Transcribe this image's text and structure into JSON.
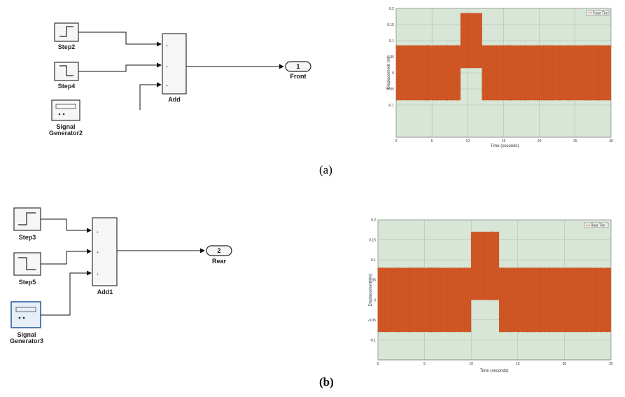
{
  "panels": [
    {
      "caption": "(a)",
      "caption_bold": false,
      "blocks": [
        {
          "name": "step-block",
          "label": "Step2",
          "icon": "step-up-icon"
        },
        {
          "name": "step-block",
          "label": "Step4",
          "icon": "step-down-icon"
        },
        {
          "name": "signal-generator-block",
          "label": "Signal Generator2",
          "icon": "signal-generator-icon"
        }
      ],
      "sum": {
        "label": "Add",
        "signs": [
          "+",
          "+",
          "+"
        ]
      },
      "outport": {
        "number": "1",
        "label": "Front"
      },
      "scope": {
        "legend": "Front Tire",
        "ylabel": "Displacement (m)",
        "xlabel": "Time (seconds)"
      }
    },
    {
      "caption": "(b)",
      "caption_bold": true,
      "blocks": [
        {
          "name": "step-block",
          "label": "Step3",
          "icon": "step-up-icon"
        },
        {
          "name": "step-block",
          "label": "Step5",
          "icon": "step-down-icon"
        },
        {
          "name": "signal-generator-block",
          "label": "Signal Generator3",
          "icon": "signal-generator-icon"
        }
      ],
      "sum": {
        "label": "Add1",
        "signs": [
          "+",
          "+",
          "+"
        ]
      },
      "outport": {
        "number": "2",
        "label": "Rear"
      },
      "scope": {
        "legend": "Rear Tire",
        "ylabel": "Displacement (m)",
        "xlabel": "Time (seconds)"
      }
    }
  ],
  "chart_data": [
    {
      "type": "area",
      "title": "",
      "xlabel": "Time (seconds)",
      "ylabel": "Displacement (m)",
      "legend": [
        "Front Tire"
      ],
      "xlim": [
        0,
        30
      ],
      "ylim": [
        -0.2,
        0.2
      ],
      "x_ticks": [
        "0",
        "5",
        "10",
        "15",
        "20",
        "25",
        "30"
      ],
      "y_ticks": [
        "0.2",
        "0.15",
        "0.1",
        "0.05",
        "0",
        "-0.05",
        "-0.1"
      ],
      "segments": [
        {
          "x_range": [
            0,
            9
          ],
          "band": [
            -0.085,
            0.085
          ]
        },
        {
          "x_range": [
            9,
            12
          ],
          "band": [
            0.015,
            0.185
          ]
        },
        {
          "x_range": [
            12,
            30
          ],
          "band": [
            -0.085,
            0.085
          ]
        }
      ],
      "grid": true,
      "legend_position": "top-right"
    },
    {
      "type": "area",
      "title": "",
      "xlabel": "Time (seconds)",
      "ylabel": "Displacement (m)",
      "legend": [
        "Rear Tire"
      ],
      "xlim": [
        0,
        25
      ],
      "ylim": [
        -0.15,
        0.2
      ],
      "x_ticks": [
        "0",
        "5",
        "10",
        "15",
        "20",
        "25"
      ],
      "y_ticks": [
        "0.2",
        "0.15",
        "0.1",
        "0.05",
        "0",
        "-0.05",
        "-0.1"
      ],
      "segments": [
        {
          "x_range": [
            0,
            10
          ],
          "band": [
            -0.08,
            0.08
          ]
        },
        {
          "x_range": [
            10,
            13
          ],
          "band": [
            0,
            0.17
          ]
        },
        {
          "x_range": [
            13,
            25
          ],
          "band": [
            -0.08,
            0.08
          ]
        }
      ],
      "grid": true,
      "legend_position": "top-right"
    }
  ],
  "colors": {
    "signal": "#d35a27",
    "plot_bg": "#d8e6d8",
    "block_fill": "#f6f6f6",
    "selected_fill": "#e6eef8"
  }
}
